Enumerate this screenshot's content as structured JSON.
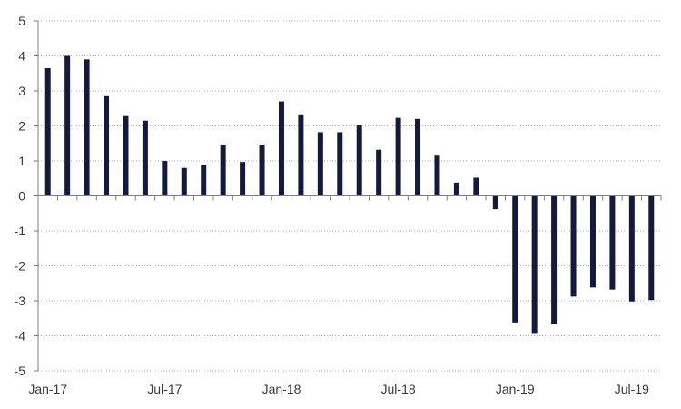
{
  "chart_data": {
    "type": "bar",
    "categories": [
      "Jan-17",
      "Feb-17",
      "Mar-17",
      "Apr-17",
      "May-17",
      "Jun-17",
      "Jul-17",
      "Aug-17",
      "Sep-17",
      "Oct-17",
      "Nov-17",
      "Dec-17",
      "Jan-18",
      "Feb-18",
      "Mar-18",
      "Apr-18",
      "May-18",
      "Jun-18",
      "Jul-18",
      "Aug-18",
      "Sep-18",
      "Oct-18",
      "Nov-18",
      "Dec-18",
      "Jan-19",
      "Feb-19",
      "Mar-19",
      "Apr-19",
      "May-19",
      "Jun-19",
      "Jul-19",
      "Aug-19"
    ],
    "values": [
      3.65,
      4.0,
      3.9,
      2.85,
      2.28,
      2.15,
      1.0,
      0.8,
      0.87,
      1.47,
      0.97,
      1.47,
      2.7,
      2.33,
      1.82,
      1.82,
      2.02,
      1.32,
      2.23,
      2.2,
      1.15,
      0.38,
      0.52,
      -0.38,
      -3.62,
      -3.92,
      -3.65,
      -2.88,
      -2.62,
      -2.68,
      -3.02,
      -2.98
    ],
    "x_tick_labels": [
      "Jan-17",
      "Jul-17",
      "Jan-18",
      "Jul-18",
      "Jan-19",
      "Jul-19"
    ],
    "y_ticks": [
      "-5",
      "-4",
      "-3",
      "-2",
      "-1",
      "0",
      "1",
      "2",
      "3",
      "4",
      "5"
    ],
    "ylim": [
      -5,
      5
    ],
    "title": "",
    "xlabel": "",
    "ylabel": "",
    "grid": true,
    "colors": {
      "bar": "#141a3d"
    }
  }
}
